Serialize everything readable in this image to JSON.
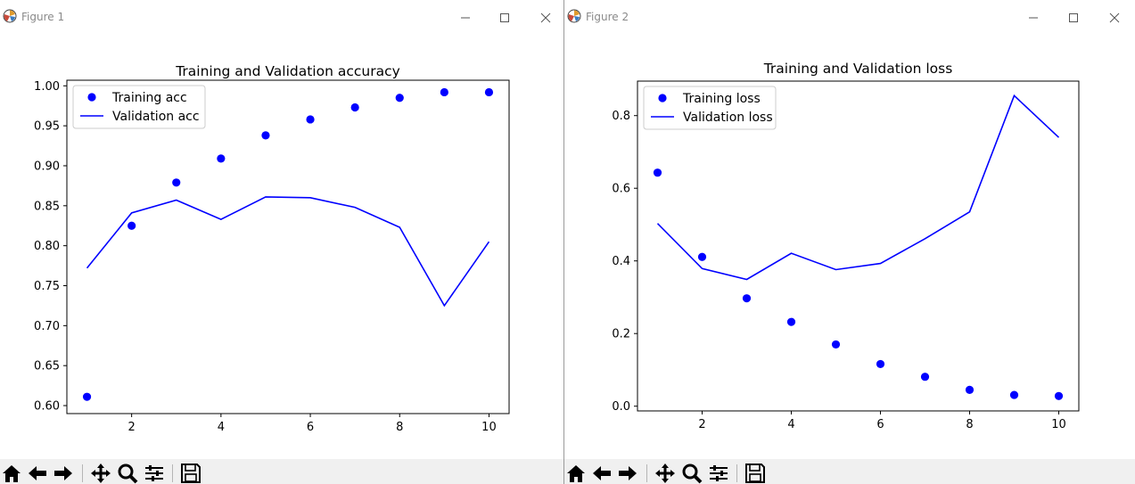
{
  "colors": {
    "series": "#0000ff",
    "axes": "#000000",
    "toolbar_bg": "#f0f0f0"
  },
  "windows": [
    {
      "title": "Figure 1",
      "controls": [
        "minimize-icon",
        "maximize-icon",
        "close-icon"
      ]
    },
    {
      "title": "Figure 2",
      "controls": [
        "minimize-icon",
        "maximize-icon",
        "close-icon"
      ]
    }
  ],
  "toolbar": {
    "buttons": [
      "home-icon",
      "back-arrow-icon",
      "forward-arrow-icon",
      "pan-icon",
      "zoom-icon",
      "configure-subplots-icon",
      "save-icon"
    ]
  },
  "chart_data": [
    {
      "type": "scatter+line",
      "title": "Training and Validation accuracy",
      "xlabel": "",
      "ylabel": "",
      "xlim": [
        0.55,
        10.45
      ],
      "ylim": [
        0.59,
        1.007
      ],
      "xticks": [
        2,
        4,
        6,
        8,
        10
      ],
      "xtick_labels": [
        "2",
        "4",
        "6",
        "8",
        "10"
      ],
      "yticks": [
        0.6,
        0.65,
        0.7,
        0.75,
        0.8,
        0.85,
        0.9,
        0.95,
        1.0
      ],
      "ytick_labels": [
        "0.60",
        "0.65",
        "0.70",
        "0.75",
        "0.80",
        "0.85",
        "0.90",
        "0.95",
        "1.00"
      ],
      "legend_position": "upper-left",
      "grid": false,
      "x": [
        1,
        2,
        3,
        4,
        5,
        6,
        7,
        8,
        9,
        10
      ],
      "series": [
        {
          "name": "Training acc",
          "style": "dots",
          "values": [
            0.611,
            0.825,
            0.879,
            0.909,
            0.938,
            0.958,
            0.973,
            0.985,
            0.992,
            0.992
          ]
        },
        {
          "name": "Validation acc",
          "style": "line",
          "values": [
            0.772,
            0.841,
            0.857,
            0.833,
            0.861,
            0.86,
            0.848,
            0.823,
            0.725,
            0.805
          ]
        }
      ]
    },
    {
      "type": "scatter+line",
      "title": "Training and Validation loss",
      "xlabel": "",
      "ylabel": "",
      "xlim": [
        0.55,
        10.45
      ],
      "ylim": [
        -0.013,
        0.895
      ],
      "xticks": [
        2,
        4,
        6,
        8,
        10
      ],
      "xtick_labels": [
        "2",
        "4",
        "6",
        "8",
        "10"
      ],
      "yticks": [
        0.0,
        0.2,
        0.4,
        0.6,
        0.8
      ],
      "ytick_labels": [
        "0.0",
        "0.2",
        "0.4",
        "0.6",
        "0.8"
      ],
      "legend_position": "upper-left",
      "grid": false,
      "x": [
        1,
        2,
        3,
        4,
        5,
        6,
        7,
        8,
        9,
        10
      ],
      "series": [
        {
          "name": "Training loss",
          "style": "dots",
          "values": [
            0.643,
            0.411,
            0.297,
            0.232,
            0.17,
            0.116,
            0.081,
            0.045,
            0.031,
            0.028
          ]
        },
        {
          "name": "Validation loss",
          "style": "line",
          "values": [
            0.503,
            0.379,
            0.349,
            0.421,
            0.376,
            0.393,
            0.461,
            0.535,
            0.855,
            0.74
          ]
        }
      ]
    }
  ]
}
